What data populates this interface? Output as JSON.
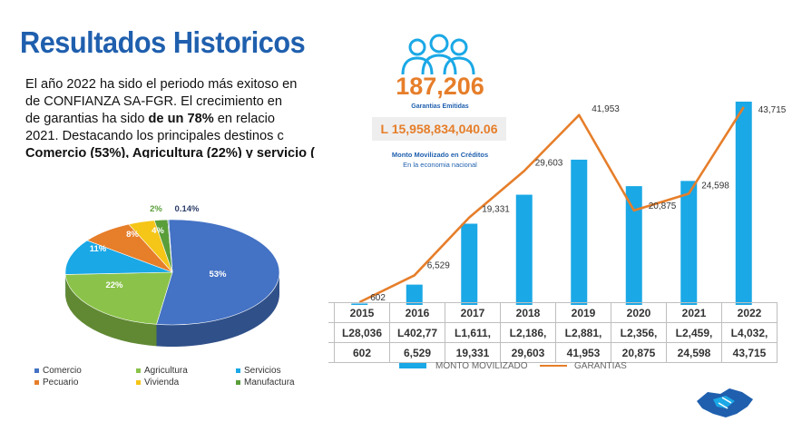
{
  "title": "Resultados Historicos",
  "text": {
    "l1": "El año 2022 ha sido el periodo más exitoso en",
    "l2": "de CONFIANZA SA-FGR.  El crecimiento en",
    "l3a": "de garantias ha sido ",
    "l3b": "de un 78%",
    "l3c": " en relacio",
    "l4": "2021. Destacando los principales destinos c",
    "l5": "Comercio (53%), Agricultura (22%) y servicio ("
  },
  "kpi": {
    "garantias_count": "187,206",
    "garantias_label": "Garantias Emitidas",
    "monto": "L 15,958,834,040.06",
    "monto_label1": "Monto Movilizado en Créditos",
    "monto_label2": "En la economia nacional"
  },
  "colors": {
    "bar": "#1aa8e6",
    "line": "#e67e2a",
    "title": "#1f5fae"
  },
  "chart_data": [
    {
      "type": "pie",
      "slices": [
        {
          "name": "Comercio",
          "value": 53,
          "label": "53%",
          "color": "#4472c4"
        },
        {
          "name": "Agricultura",
          "value": 22,
          "label": "22%",
          "color": "#8bc34a"
        },
        {
          "name": "Servicios",
          "value": 11,
          "label": "11%",
          "color": "#1aa8e6"
        },
        {
          "name": "Pecuario",
          "value": 8,
          "label": "8%",
          "color": "#e67e2a"
        },
        {
          "name": "Vivienda",
          "value": 4,
          "label": "4%",
          "color": "#f5c518"
        },
        {
          "name": "Manufactura",
          "value": 2,
          "label": "2%",
          "color": "#5a9e3a"
        },
        {
          "name": "",
          "value": 0.14,
          "label": "0.14%",
          "color": "#2e6fa8"
        }
      ],
      "legend": [
        "Comercio",
        "Agricultura",
        "Servicios",
        "Pecuario",
        "Vivienda",
        "Manufactura"
      ],
      "legend_position": "bottom"
    },
    {
      "type": "bar",
      "categories": [
        "2015",
        "2016",
        "2017",
        "2018",
        "2019",
        "2020",
        "2021",
        "2022"
      ],
      "bar_series": {
        "name": "MONTO MOVILIZADO",
        "values": [
          28036,
          402770,
          1611000,
          2186000,
          2881000,
          2356000,
          2459000,
          4032000
        ]
      },
      "line_series": {
        "name": "GARANTIAS",
        "values": [
          602,
          6529,
          19331,
          29603,
          41953,
          20875,
          24598,
          43715
        ],
        "labels": [
          "602",
          "6,529",
          "19,331",
          "29,603",
          "41,953",
          "20,875",
          "24,598",
          "43,715"
        ]
      },
      "table_rows": [
        [
          "L28,036",
          "L402,77",
          "L1,611,",
          "L2,186,",
          "L2,881,",
          "L2,356,",
          "L2,459,",
          "L4,032,"
        ],
        [
          "602",
          "6,529",
          "19,331",
          "29,603",
          "41,953",
          "20,875",
          "24,598",
          "43,715"
        ]
      ],
      "legend_position": "bottom"
    }
  ]
}
